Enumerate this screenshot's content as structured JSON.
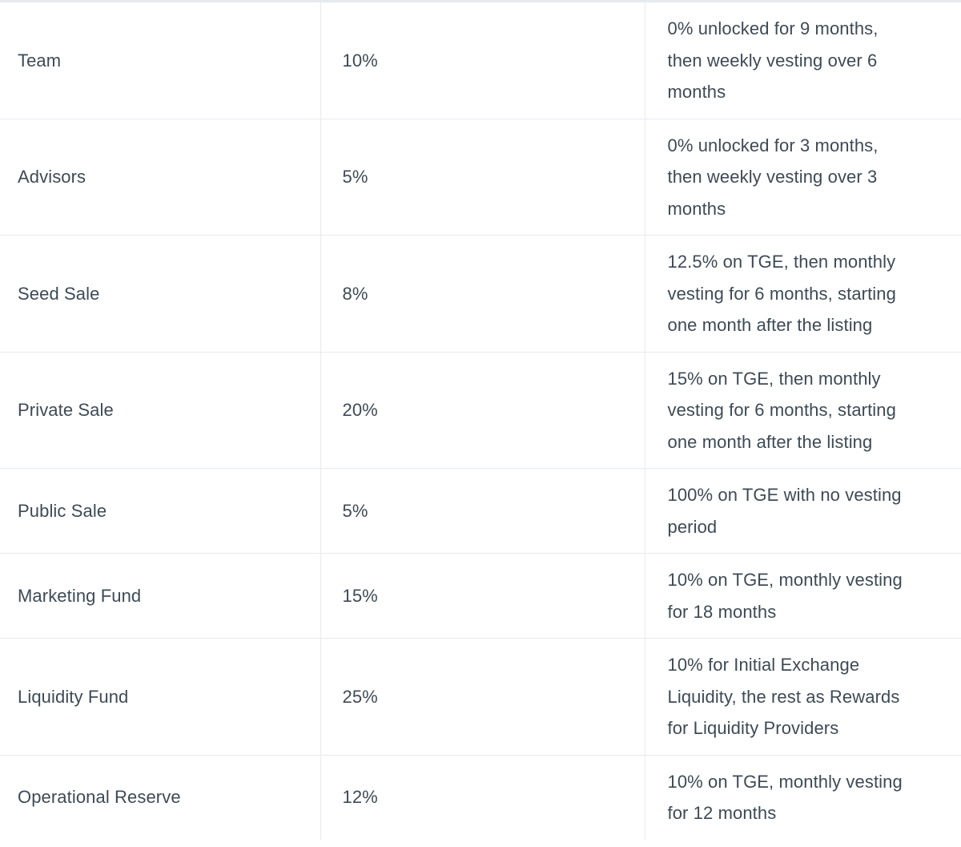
{
  "colors": {
    "background": "#ffffff",
    "border": "#e7eaf0",
    "top_border": "#e5e9f0",
    "text": "#3d4a55"
  },
  "chart_data": {
    "type": "table",
    "title": "",
    "rows": [
      {
        "category": "Team",
        "allocation": "10%",
        "allocation_value": 10,
        "vesting": "0% unlocked for 9 months,\nthen weekly vesting over 6\nmonths"
      },
      {
        "category": "Advisors",
        "allocation": "5%",
        "allocation_value": 5,
        "vesting": "0% unlocked for 3 months,\nthen weekly vesting over 3\nmonths"
      },
      {
        "category": "Seed Sale",
        "allocation": "8%",
        "allocation_value": 8,
        "vesting": "12.5% on TGE, then monthly\nvesting for 6 months, starting\none month after the listing"
      },
      {
        "category": "Private Sale",
        "allocation": "20%",
        "allocation_value": 20,
        "vesting": "15% on TGE, then monthly\nvesting for 6 months, starting\none month after the listing"
      },
      {
        "category": "Public Sale",
        "allocation": "5%",
        "allocation_value": 5,
        "vesting": "100% on TGE with no vesting\nperiod"
      },
      {
        "category": "Marketing Fund",
        "allocation": "15%",
        "allocation_value": 15,
        "vesting": "10% on TGE, monthly vesting\nfor 18 months"
      },
      {
        "category": "Liquidity Fund",
        "allocation": "25%",
        "allocation_value": 25,
        "vesting": "10% for Initial Exchange\nLiquidity, the rest as Rewards\nfor Liquidity Providers"
      },
      {
        "category": "Operational Reserve",
        "allocation": "12%",
        "allocation_value": 12,
        "vesting": "10% on TGE, monthly vesting\nfor 12 months"
      }
    ]
  }
}
